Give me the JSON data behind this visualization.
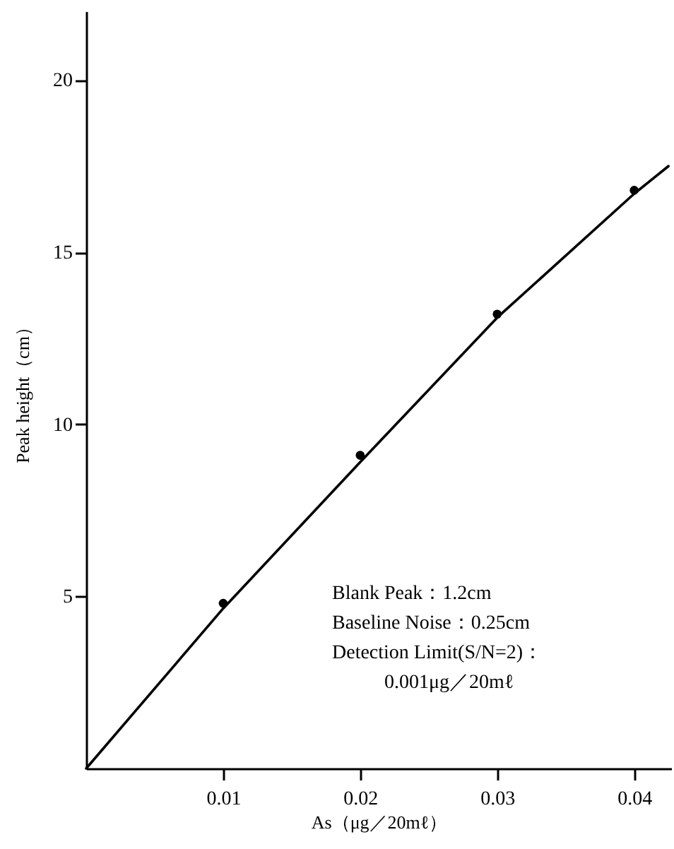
{
  "chart_data": {
    "type": "scatter",
    "xlabel": "As（μg／20mℓ）",
    "ylabel": "Peak height（cm）",
    "xlim": [
      0,
      0.0427
    ],
    "ylim": [
      0,
      22
    ],
    "xticks": [
      0.01,
      0.02,
      0.03,
      0.04
    ],
    "yticks": [
      5,
      10,
      15,
      20
    ],
    "grid": false,
    "series": [
      {
        "type": "scatter",
        "color": "#000000",
        "marker": "circle",
        "x": [
          0.01,
          0.02,
          0.03,
          0.04
        ],
        "values": [
          4.8,
          9.1,
          13.2,
          16.8
        ]
      },
      {
        "type": "line",
        "color": "#000000",
        "marker": "none",
        "line_style": "solid",
        "x": [
          0,
          0.01,
          0.02,
          0.03,
          0.04,
          0.0425
        ],
        "values": [
          0,
          4.65,
          8.9,
          13.1,
          16.7,
          17.5
        ]
      }
    ],
    "annotations": [
      "Blank Peak：1.2cm",
      "Baseline Noise：0.25cm",
      "Detection Limit(S/N=2)：",
      "0.001μg／20mℓ"
    ]
  }
}
